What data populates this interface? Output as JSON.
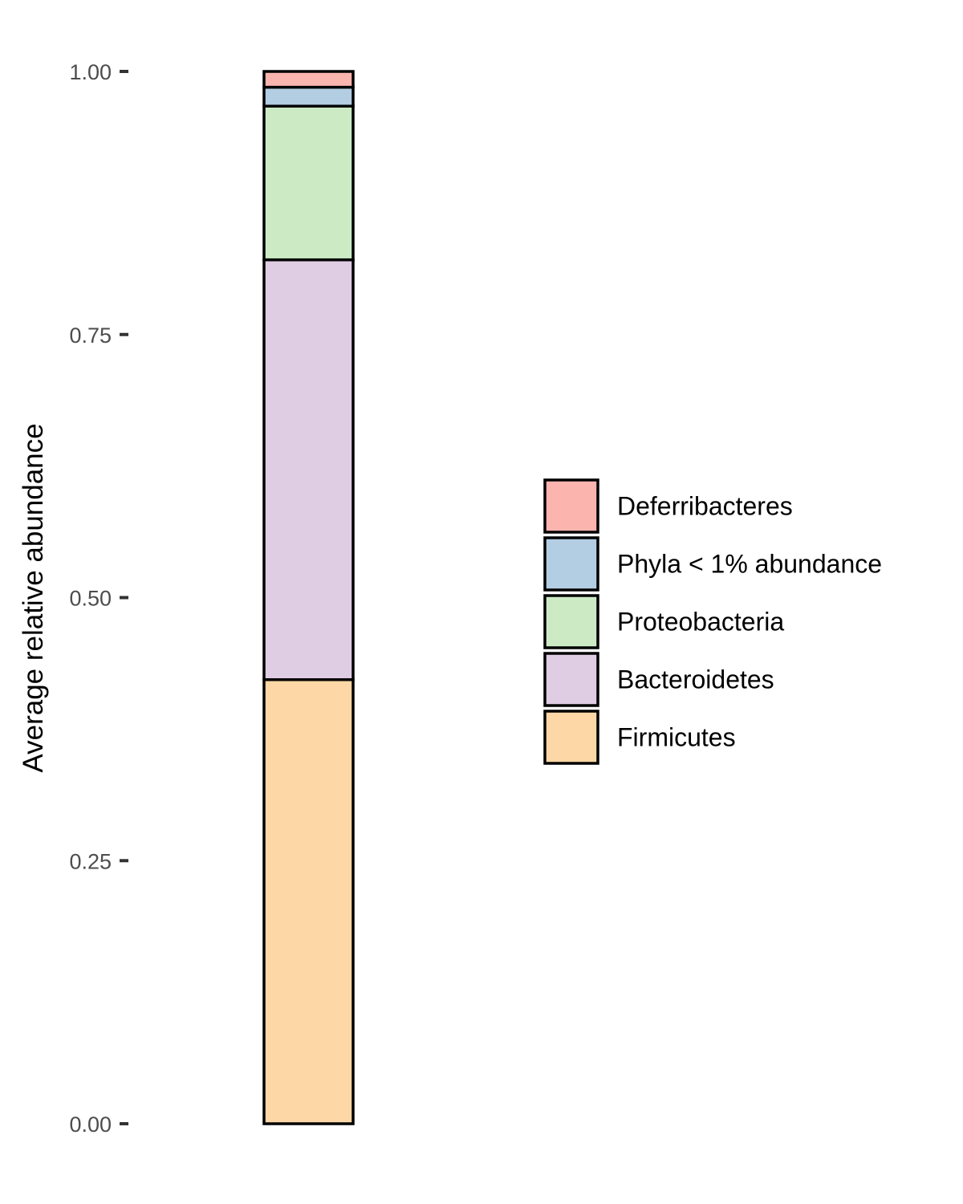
{
  "chart_data": {
    "type": "bar",
    "stacked": true,
    "categories": [
      ""
    ],
    "xlabel": "",
    "ylabel": "Average relative abundance",
    "ylim": [
      0,
      1
    ],
    "yticks": [
      "0.00",
      "0.25",
      "0.50",
      "0.75",
      "1.00"
    ],
    "grid": false,
    "legend_position": "right",
    "series": [
      {
        "name": "Firmicutes",
        "values": [
          0.422
        ],
        "color": "#fdd7a6"
      },
      {
        "name": "Bacteroidetes",
        "values": [
          0.399
        ],
        "color": "#dfcde4"
      },
      {
        "name": "Proteobacteria",
        "values": [
          0.146
        ],
        "color": "#ccebc5"
      },
      {
        "name": "Phyla < 1% abundance",
        "values": [
          0.018
        ],
        "color": "#b3cde3"
      },
      {
        "name": "Deferribacteres",
        "values": [
          0.015
        ],
        "color": "#fbb4ae"
      }
    ],
    "legend_order": [
      "Deferribacteres",
      "Phyla < 1% abundance",
      "Proteobacteria",
      "Bacteroidetes",
      "Firmicutes"
    ]
  }
}
